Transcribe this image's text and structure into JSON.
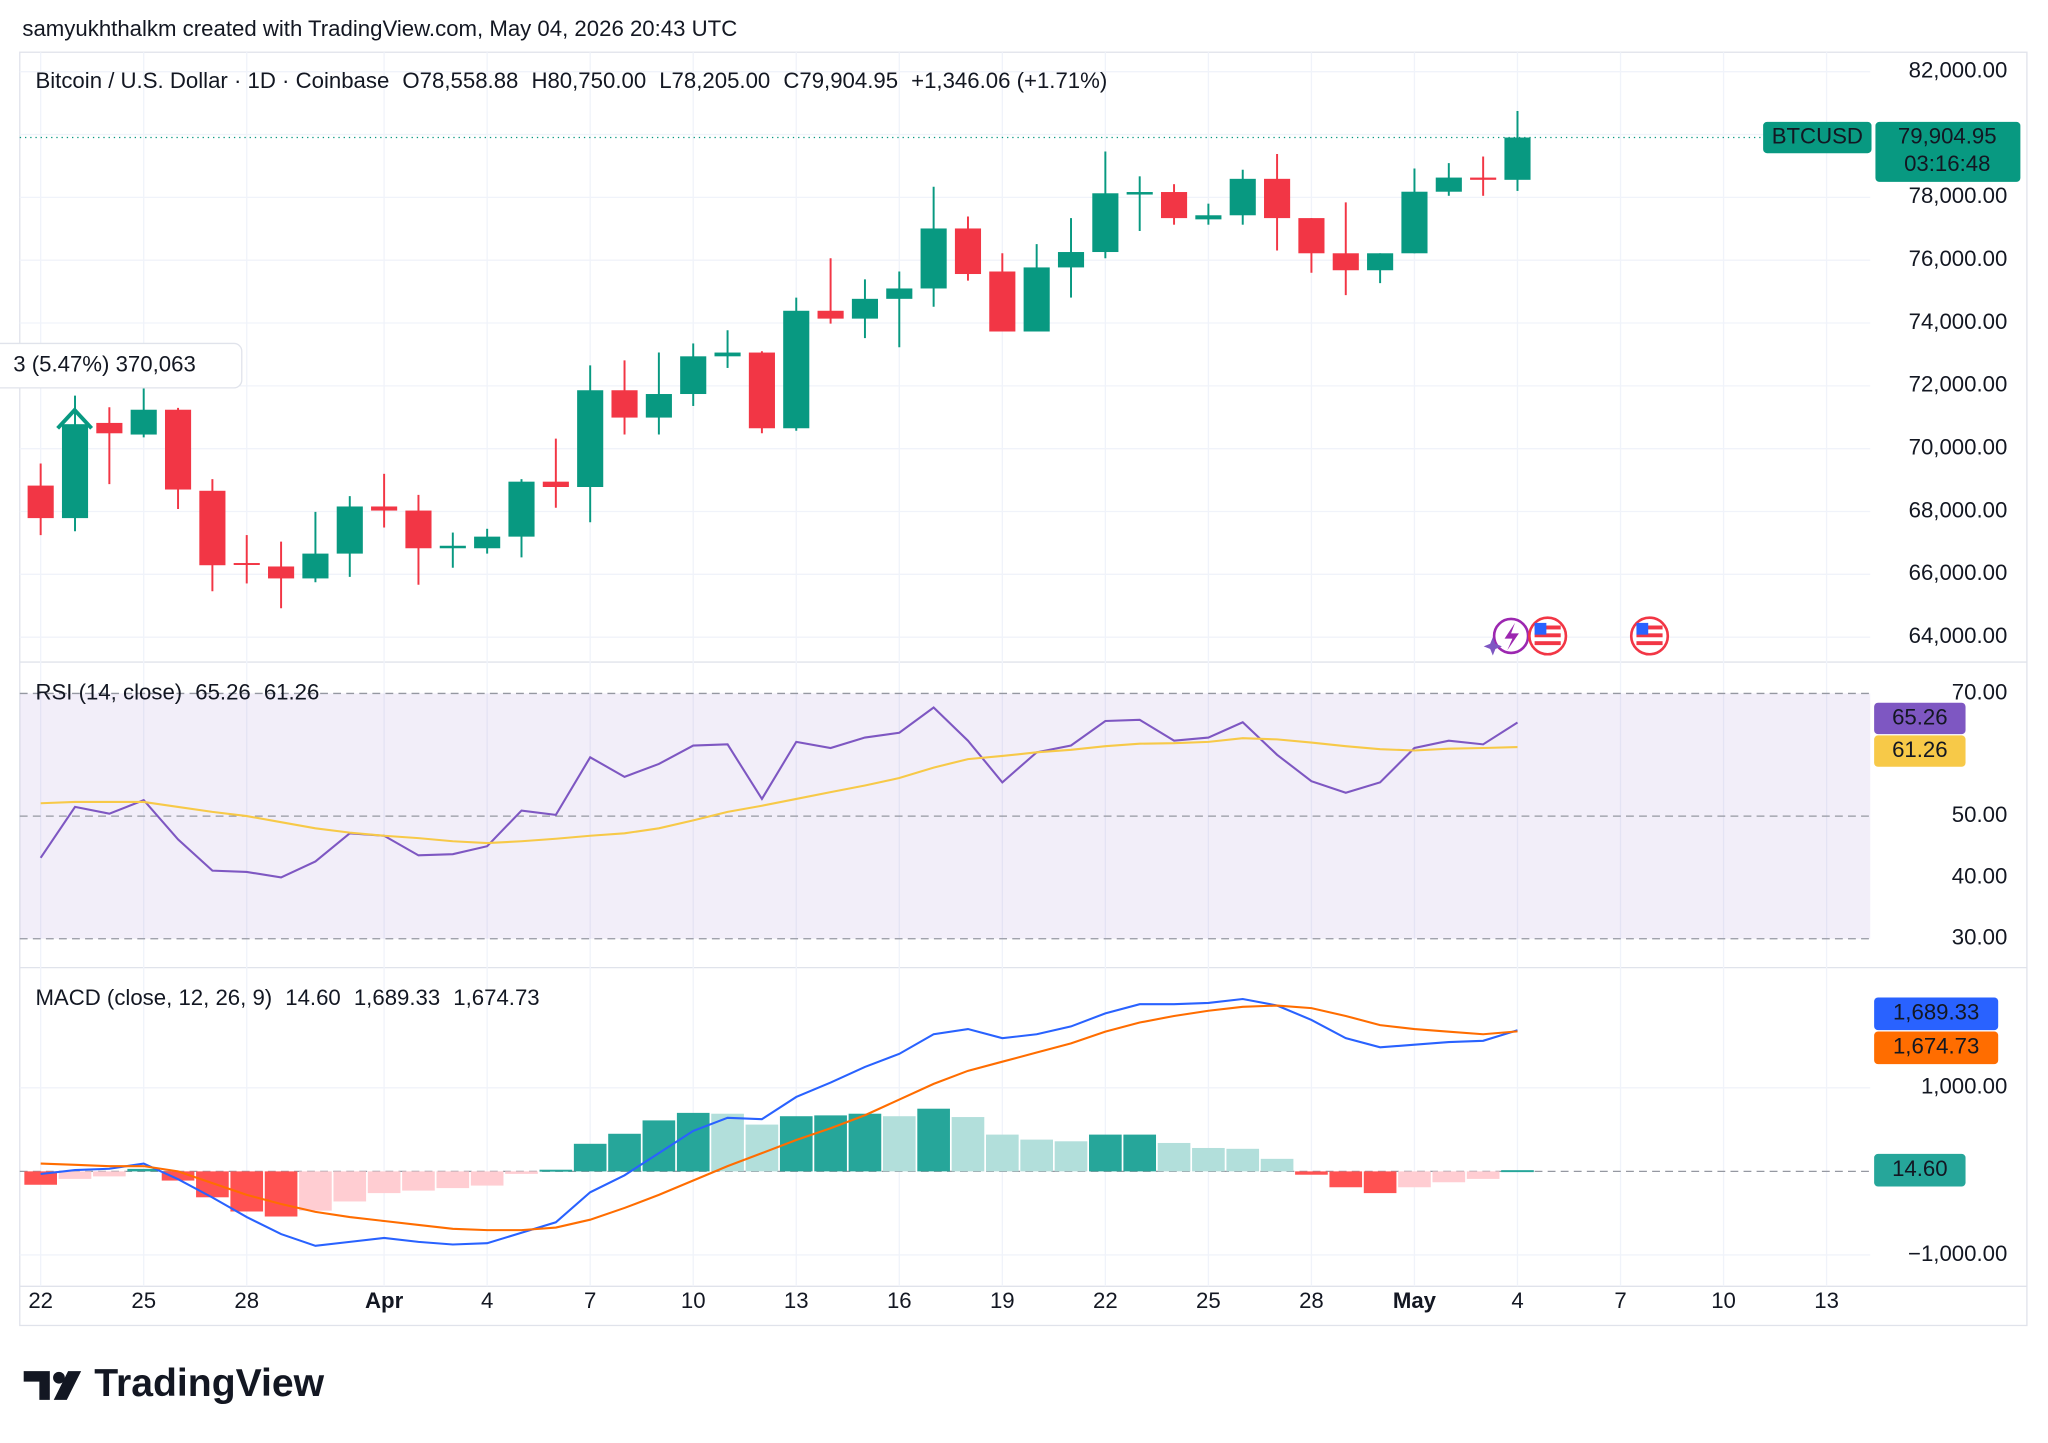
{
  "chart_data": {
    "type": "candlestick",
    "header": "samyukhthalkm created with TradingView.com, May 04, 2026 20:43 UTC",
    "title": "Bitcoin / U.S. Dollar · 1D · Coinbase",
    "legend": [
      "O78,558.88",
      "H80,750.00",
      "L78,205.00",
      "C79,904.95",
      "+1,346.06 (+1.71%)"
    ],
    "annotation": "3 (5.47%) 370,063",
    "brand": "TradingView",
    "up_color": "#089981",
    "down_color": "#f23645",
    "categories": [
      "22",
      null,
      null,
      "25",
      null,
      null,
      "28",
      null,
      null,
      null,
      "Apr",
      null,
      null,
      "4",
      null,
      null,
      "7",
      null,
      null,
      "10",
      null,
      null,
      "13",
      null,
      null,
      "16",
      null,
      null,
      "19",
      null,
      null,
      "22",
      null,
      null,
      "25",
      null,
      null,
      "28",
      null,
      null,
      "May",
      null,
      null,
      "4",
      null,
      null,
      "7",
      null,
      null,
      "10",
      null,
      null,
      "13",
      null
    ],
    "open": [
      68825,
      67790,
      70820,
      70450,
      71240,
      68660,
      66360,
      66250,
      65870,
      66660,
      68160,
      68030,
      66830,
      66830,
      67200,
      68950,
      68780,
      71860,
      70990,
      71740,
      72940,
      73060,
      70650,
      74390,
      74140,
      74770,
      75100,
      77010,
      75640,
      73730,
      75770,
      76260,
      78090,
      78170,
      77300,
      77430,
      78590,
      77340,
      76220,
      75680,
      76220,
      78180,
      78630,
      78558.88,
      null,
      null,
      null,
      null,
      null,
      null,
      null,
      null,
      null,
      null
    ],
    "high": [
      69530,
      71690,
      71320,
      71980,
      71300,
      69030,
      67250,
      67040,
      67990,
      68490,
      69200,
      68530,
      67330,
      67450,
      69030,
      70320,
      72650,
      72810,
      73060,
      73350,
      73770,
      73100,
      74810,
      76060,
      75390,
      75640,
      78340,
      77390,
      76220,
      76510,
      77340,
      79460,
      78670,
      78420,
      77800,
      78880,
      79380,
      77340,
      77840,
      76220,
      78920,
      79090,
      79300,
      80750,
      null,
      null,
      null,
      null,
      null,
      null,
      null,
      null,
      null,
      null
    ],
    "low": [
      67250,
      67370,
      68870,
      70360,
      68080,
      65460,
      65710,
      64920,
      65750,
      65920,
      67490,
      65670,
      66210,
      66660,
      66540,
      68120,
      67660,
      70450,
      70450,
      71360,
      72570,
      70490,
      70570,
      73980,
      73520,
      73230,
      74520,
      75350,
      73730,
      73730,
      74810,
      76060,
      76930,
      77130,
      77130,
      77130,
      76310,
      75600,
      74890,
      75270,
      76220,
      78050,
      78050,
      78205,
      null,
      null,
      null,
      null,
      null,
      null,
      null,
      null,
      null,
      null
    ],
    "close": [
      67790,
      70780,
      70490,
      71240,
      68700,
      66290,
      66300,
      65870,
      66660,
      68160,
      68030,
      66830,
      66910,
      67200,
      68950,
      68780,
      71860,
      70990,
      71740,
      72940,
      73060,
      70650,
      74390,
      74140,
      74770,
      75100,
      77010,
      75560,
      73730,
      75770,
      76260,
      78130,
      78170,
      77340,
      77430,
      78590,
      77340,
      76220,
      75680,
      76220,
      78180,
      78630,
      78559,
      79904.95,
      null,
      null,
      null,
      null,
      null,
      null,
      null,
      null,
      null,
      null
    ],
    "last_price": {
      "symbol": "BTCUSD",
      "label": "79,904.95",
      "countdown": "03:16:48"
    },
    "ylim": [
      63290,
      82620
    ],
    "yticks": [
      {
        "value": 64000,
        "label": "64,000.00"
      },
      {
        "value": 66000,
        "label": "66,000.00"
      },
      {
        "value": 68000,
        "label": "68,000.00"
      },
      {
        "value": 70000,
        "label": "70,000.00"
      },
      {
        "value": 72000,
        "label": "72,000.00"
      },
      {
        "value": 74000,
        "label": "74,000.00"
      },
      {
        "value": 76000,
        "label": "76,000.00"
      },
      {
        "value": 78000,
        "label": "78,000.00"
      },
      {
        "value": 80000,
        "label": "80,000.00"
      },
      {
        "value": 82000,
        "label": "82,000.00"
      }
    ],
    "grid": true,
    "rsi": {
      "title": "RSI (14, close)",
      "ylim": [
        25.5,
        74.9
      ],
      "yticks": [
        {
          "value": 70,
          "label": "70.00"
        },
        {
          "value": 50,
          "label": "50.00"
        },
        {
          "value": 40,
          "label": "40.00"
        },
        {
          "value": 30,
          "label": "30.00"
        }
      ],
      "band": [
        30,
        70
      ],
      "midline": 50,
      "band_color": "#7e57c2",
      "series": [
        {
          "color": "#7e57c2",
          "last_label": "65.26",
          "values": [
            43.2,
            51.5,
            50.4,
            52.6,
            46.2,
            41.1,
            40.9,
            40.0,
            42.6,
            47.2,
            46.8,
            43.6,
            43.8,
            45.1,
            50.9,
            50.2,
            59.6,
            56.4,
            58.5,
            61.5,
            61.7,
            52.8,
            62.1,
            61.1,
            62.8,
            63.6,
            67.7,
            62.3,
            55.5,
            60.4,
            61.5,
            65.5,
            65.7,
            62.3,
            62.8,
            65.3,
            60.0,
            55.7,
            53.8,
            55.5,
            61.1,
            62.3,
            61.7,
            65.26,
            null,
            null,
            null,
            null,
            null,
            null,
            null,
            null,
            null,
            null
          ]
        },
        {
          "color": "#f7c948",
          "last_label": "61.26",
          "values": [
            52.1,
            52.3,
            52.3,
            52.3,
            51.5,
            50.7,
            50.0,
            49.0,
            48.0,
            47.3,
            46.8,
            46.4,
            45.9,
            45.6,
            45.9,
            46.3,
            46.8,
            47.2,
            48.0,
            49.3,
            50.7,
            51.7,
            52.8,
            53.9,
            55.0,
            56.2,
            57.9,
            59.3,
            59.8,
            60.4,
            60.8,
            61.4,
            61.8,
            61.9,
            62.1,
            62.7,
            62.5,
            62.0,
            61.4,
            60.9,
            60.7,
            61.0,
            61.1,
            61.26,
            null,
            null,
            null,
            null,
            null,
            null,
            null,
            null,
            null,
            null
          ]
        }
      ]
    },
    "macd": {
      "title": "MACD (close, 12, 26, 9)",
      "ylim": [
        -1375,
        2422
      ],
      "yticks": [
        {
          "value": 1000,
          "label": "1,000.00"
        },
        {
          "value": -1000,
          "label": "−1,000.00"
        }
      ],
      "histogram": {
        "colors": [
          "#26a69a",
          "#b2dfdb",
          "#ff5252",
          "#ffcdd2"
        ],
        "last_label": "14.60",
        "values": [
          -160,
          -90,
          -60,
          30,
          -110,
          -310,
          -480,
          -540,
          -470,
          -360,
          -260,
          -230,
          -200,
          -170,
          -30,
          20,
          330,
          450,
          610,
          700,
          690,
          560,
          660,
          670,
          690,
          660,
          750,
          650,
          440,
          380,
          360,
          440,
          440,
          340,
          280,
          270,
          150,
          -40,
          -190,
          -260,
          -190,
          -130,
          -90,
          14.6,
          null,
          null,
          null,
          null,
          null,
          null,
          null,
          null,
          null,
          null
        ]
      },
      "series": [
        {
          "color": "#2962ff",
          "last_label": "1,689.33",
          "values": [
            -31,
            16,
            31,
            94,
            -94,
            -312,
            -547,
            -750,
            -891,
            -844,
            -797,
            -844,
            -875,
            -859,
            -734,
            -609,
            -250,
            -47,
            219,
            484,
            641,
            625,
            891,
            1063,
            1250,
            1406,
            1641,
            1703,
            1594,
            1641,
            1734,
            1891,
            2000,
            2000,
            2016,
            2063,
            1984,
            1813,
            1594,
            1484,
            1516,
            1547,
            1563,
            1689.33,
            null,
            null,
            null,
            null,
            null,
            null,
            null,
            null,
            null,
            null
          ]
        },
        {
          "color": "#ff6d00",
          "last_label": "1,674.73",
          "values": [
            94,
            78,
            63,
            63,
            0,
            -141,
            -281,
            -391,
            -484,
            -547,
            -594,
            -641,
            -688,
            -703,
            -703,
            -672,
            -578,
            -438,
            -281,
            -109,
            63,
            219,
            375,
            516,
            672,
            859,
            1047,
            1203,
            1313,
            1422,
            1531,
            1672,
            1781,
            1859,
            1922,
            1969,
            1984,
            1953,
            1859,
            1750,
            1703,
            1672,
            1641,
            1674.73,
            null,
            null,
            null,
            null,
            null,
            null,
            null,
            null,
            null,
            null
          ]
        }
      ]
    }
  }
}
